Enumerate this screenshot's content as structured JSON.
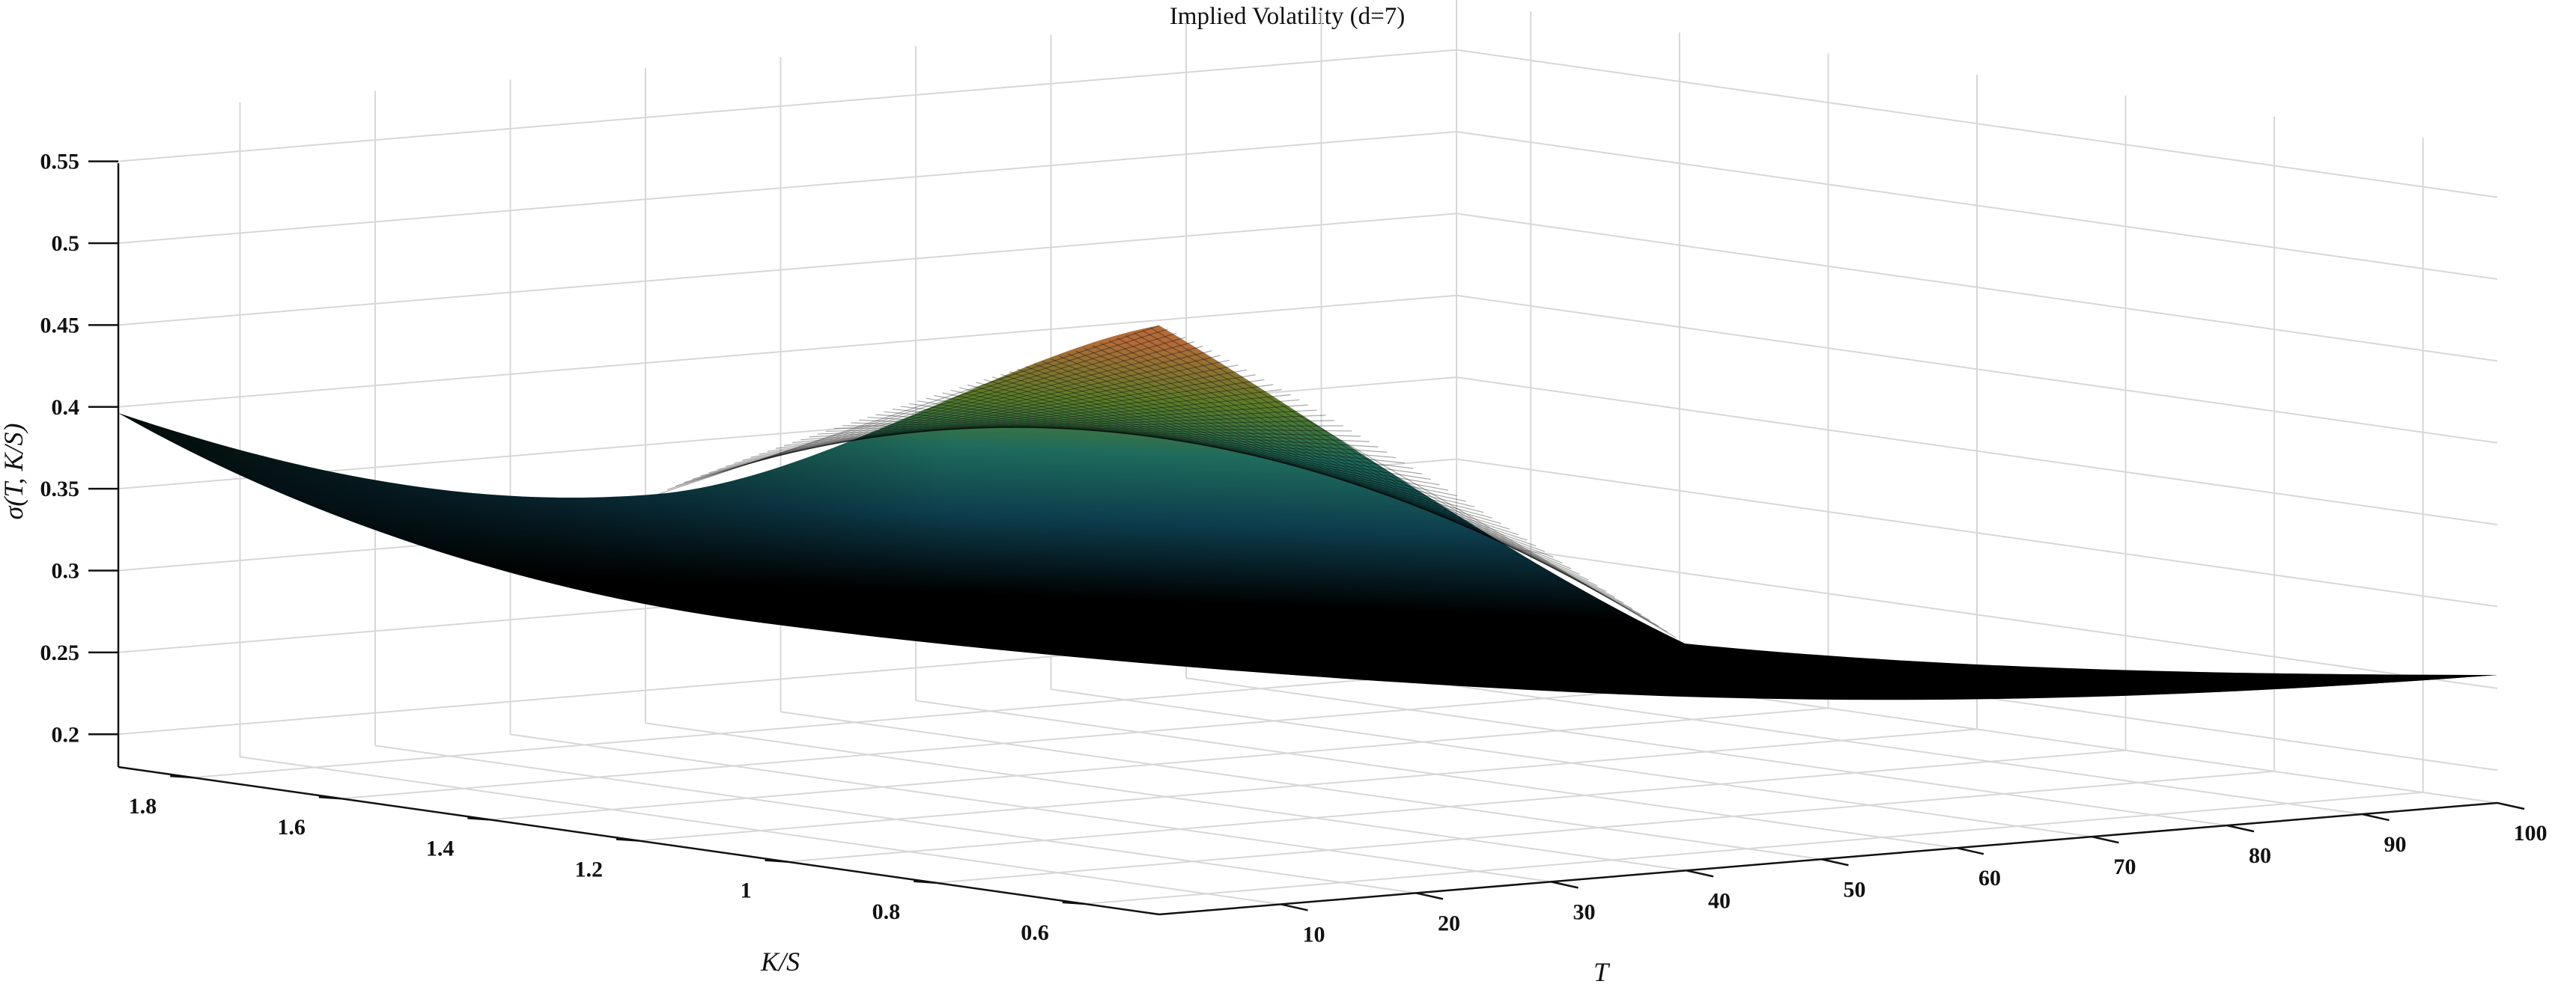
{
  "chart_data": {
    "type": "surface",
    "title": "Implied Volatility (d=7)",
    "xlabel": "T",
    "ylabel": "K/S",
    "zlabel": "σ(T, K/S)",
    "x_ticks": [
      "10",
      "20",
      "30",
      "40",
      "50",
      "60",
      "70",
      "80",
      "90",
      "100"
    ],
    "y_ticks": [
      "0.6",
      "0.8",
      "1",
      "1.2",
      "1.4",
      "1.6",
      "1.8"
    ],
    "z_ticks": [
      "0.2",
      "0.25",
      "0.3",
      "0.35",
      "0.4",
      "0.45",
      "0.5",
      "0.55"
    ],
    "x_range": [
      1,
      100
    ],
    "y_range": [
      0.5,
      1.9
    ],
    "z_range": [
      0.18,
      0.58
    ],
    "grid": true,
    "colormap": [
      "#000000",
      "#0d3d4d",
      "#1f6b5c",
      "#5a7d2a",
      "#8a6a1c",
      "#b36b3a"
    ],
    "surface_samples": {
      "description_of_points": "sampled surface values: [T, K/S, sigma]",
      "points": [
        [
          1,
          1.9,
          0.42
        ],
        [
          1,
          0.5,
          0.48
        ],
        [
          100,
          1.9,
          0.24
        ],
        [
          100,
          0.5,
          0.245
        ],
        [
          50,
          1.2,
          0.33
        ]
      ]
    }
  }
}
